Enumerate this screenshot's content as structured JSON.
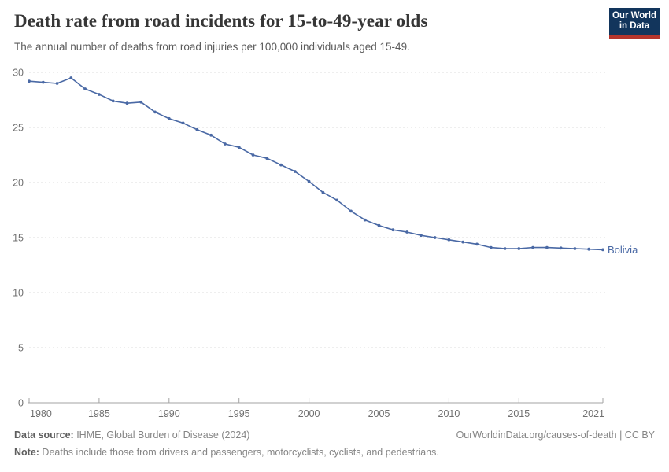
{
  "header": {
    "title": "Death rate from road incidents for 15-to-49-year olds",
    "subtitle": "The annual number of deaths from road injuries per 100,000 individuals aged 15-49."
  },
  "logo": {
    "line1": "Our World",
    "line2": "in Data",
    "bg_color": "#12355c",
    "bar_color": "#b5352c"
  },
  "chart_data": {
    "type": "line",
    "title": "Death rate from road incidents for 15-to-49-year olds",
    "xlabel": "",
    "ylabel": "",
    "xlim": [
      1980,
      2021
    ],
    "ylim": [
      0,
      30
    ],
    "grid": true,
    "x_ticks": [
      1980,
      1985,
      1990,
      1995,
      2000,
      2005,
      2010,
      2015,
      2021
    ],
    "y_ticks": [
      0,
      5,
      10,
      15,
      20,
      25,
      30
    ],
    "legend_position": "end-of-line",
    "colors": {
      "line": "#4a69a5",
      "grid": "#dcdcdc",
      "axis": "#a3a3a3",
      "tick_label": "#707070"
    },
    "series": [
      {
        "name": "Bolivia",
        "color": "#4a69a5",
        "x": [
          1980,
          1981,
          1982,
          1983,
          1984,
          1985,
          1986,
          1987,
          1988,
          1989,
          1990,
          1991,
          1992,
          1993,
          1994,
          1995,
          1996,
          1997,
          1998,
          1999,
          2000,
          2001,
          2002,
          2003,
          2004,
          2005,
          2006,
          2007,
          2008,
          2009,
          2010,
          2011,
          2012,
          2013,
          2014,
          2015,
          2016,
          2017,
          2018,
          2019,
          2020,
          2021
        ],
        "values": [
          29.2,
          29.1,
          29.0,
          29.5,
          28.5,
          28.0,
          27.4,
          27.2,
          27.3,
          26.4,
          25.8,
          25.4,
          24.8,
          24.3,
          23.5,
          23.2,
          22.5,
          22.2,
          21.6,
          21.0,
          20.1,
          19.1,
          18.4,
          17.4,
          16.6,
          16.1,
          15.7,
          15.5,
          15.2,
          15.0,
          14.8,
          14.6,
          14.4,
          14.1,
          14.0,
          14.0,
          14.1,
          14.1,
          14.05,
          14.0,
          13.95,
          13.9
        ]
      }
    ]
  },
  "footer": {
    "source_label": "Data source:",
    "source_text": " IHME, Global Burden of Disease (2024)",
    "link_text": "OurWorldinData.org/causes-of-death | CC BY",
    "note_label": "Note:",
    "note_text": " Deaths include those from drivers and passengers, motorcyclists, cyclists, and pedestrians."
  }
}
